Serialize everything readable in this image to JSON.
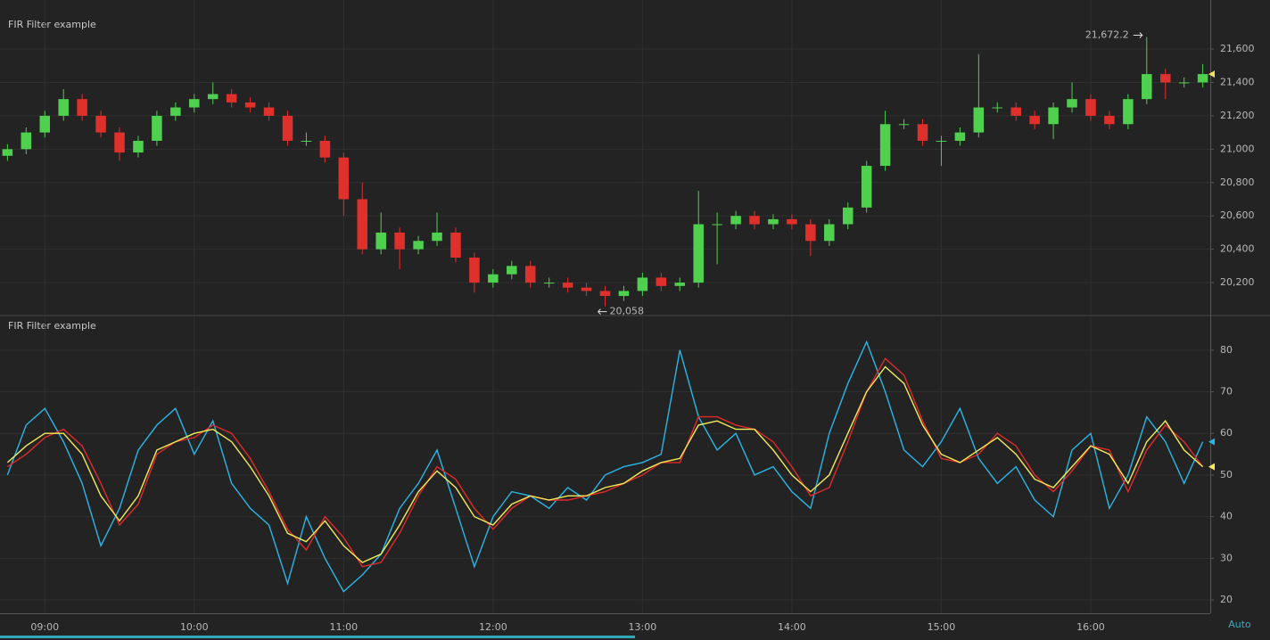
{
  "chart_data": [
    {
      "type": "candlestick",
      "title": "FIR Filter example",
      "x": [
        8.75,
        8.875,
        9,
        9.125,
        9.25,
        9.375,
        9.5,
        9.625,
        9.75,
        9.875,
        10,
        10.125,
        10.25,
        10.375,
        10.5,
        10.625,
        10.75,
        10.875,
        11,
        11.125,
        11.25,
        11.375,
        11.5,
        11.625,
        11.75,
        11.875,
        12,
        12.125,
        12.25,
        12.375,
        12.5,
        12.625,
        12.75,
        12.875,
        13,
        13.125,
        13.25,
        13.375,
        13.5,
        13.625,
        13.75,
        13.875,
        14,
        14.125,
        14.25,
        14.375,
        14.5,
        14.625,
        14.75,
        14.875,
        15,
        15.125,
        15.25,
        15.375,
        15.5,
        15.625,
        15.75,
        15.875,
        16,
        16.125,
        16.25,
        16.375,
        16.5,
        16.625,
        16.75
      ],
      "open": [
        20960,
        21000,
        21100,
        21200,
        21300,
        21200,
        21100,
        20980,
        21050,
        21200,
        21250,
        21300,
        21330,
        21280,
        21250,
        21200,
        21050,
        21050,
        20950,
        20700,
        20400,
        20500,
        20400,
        20450,
        20500,
        20350,
        20200,
        20250,
        20300,
        20200,
        20200,
        20170,
        20150,
        20120,
        20150,
        20230,
        20180,
        20200,
        20550,
        20550,
        20600,
        20550,
        20580,
        20550,
        20450,
        20550,
        20650,
        20900,
        21150,
        21150,
        21050,
        21050,
        21100,
        21250,
        21250,
        21200,
        21150,
        21250,
        21300,
        21200,
        21150,
        21300,
        21450,
        21400,
        21400
      ],
      "high": [
        21030,
        21130,
        21230,
        21360,
        21330,
        21230,
        21130,
        21080,
        21230,
        21280,
        21330,
        21400,
        21360,
        21310,
        21280,
        21230,
        21100,
        21080,
        20980,
        20800,
        20620,
        20530,
        20480,
        20620,
        20530,
        20380,
        20280,
        20330,
        20330,
        20230,
        20230,
        20200,
        20180,
        20180,
        20260,
        20260,
        20230,
        20750,
        20620,
        20630,
        20630,
        20610,
        20610,
        20580,
        20580,
        20680,
        20930,
        21230,
        21180,
        21180,
        21080,
        21130,
        21570,
        21280,
        21280,
        21230,
        21280,
        21400,
        21330,
        21230,
        21330,
        21672.2,
        21480,
        21430,
        21510
      ],
      "low": [
        20930,
        20970,
        21070,
        21170,
        21170,
        21070,
        20930,
        20950,
        21020,
        21170,
        21220,
        21270,
        21250,
        21220,
        21170,
        21020,
        21020,
        20920,
        20600,
        20370,
        20370,
        20280,
        20370,
        20420,
        20320,
        20140,
        20170,
        20220,
        20170,
        20170,
        20140,
        20120,
        20058,
        20090,
        20120,
        20150,
        20150,
        20170,
        20310,
        20520,
        20520,
        20520,
        20520,
        20360,
        20420,
        20520,
        20620,
        20870,
        21120,
        21020,
        20900,
        21020,
        21070,
        21220,
        21170,
        21120,
        21060,
        21220,
        21170,
        21120,
        21120,
        21270,
        21300,
        21370,
        21370
      ],
      "close": [
        21000,
        21100,
        21200,
        21300,
        21200,
        21100,
        20980,
        21050,
        21200,
        21250,
        21300,
        21330,
        21280,
        21250,
        21200,
        21050,
        21050,
        20950,
        20700,
        20400,
        20500,
        20400,
        20450,
        20500,
        20350,
        20200,
        20250,
        20300,
        20200,
        20200,
        20170,
        20150,
        20120,
        20150,
        20230,
        20180,
        20200,
        20550,
        20550,
        20600,
        20550,
        20580,
        20550,
        20450,
        20550,
        20650,
        20900,
        21150,
        21150,
        21050,
        21050,
        21100,
        21250,
        21250,
        21200,
        21150,
        21250,
        21300,
        21200,
        21150,
        21300,
        21450,
        21400,
        21400,
        21450
      ],
      "up_color": "#4fd04f",
      "down_color": "#e0302c",
      "last_color": "#f0e060",
      "ylim": [
        20008,
        21894
      ],
      "yticks": [
        {
          "value": 20200,
          "label": "20,200"
        },
        {
          "value": 20400,
          "label": "20,400"
        },
        {
          "value": 20600,
          "label": "20,600"
        },
        {
          "value": 20800,
          "label": "20,800"
        },
        {
          "value": 21000,
          "label": "21,000"
        },
        {
          "value": 21200,
          "label": "21,200"
        },
        {
          "value": 21400,
          "label": "21,400"
        },
        {
          "value": 21600,
          "label": "21,600"
        }
      ],
      "annotations": [
        {
          "text": "21,672.2",
          "x": 16.375,
          "y": 21672.2,
          "side": "left"
        },
        {
          "text": "20,058",
          "x": 12.75,
          "y": 20058,
          "side": "right"
        }
      ],
      "grid": true
    },
    {
      "type": "line",
      "title": "FIR Filter example",
      "x": [
        8.75,
        8.875,
        9,
        9.125,
        9.25,
        9.375,
        9.5,
        9.625,
        9.75,
        9.875,
        10,
        10.125,
        10.25,
        10.375,
        10.5,
        10.625,
        10.75,
        10.875,
        11,
        11.125,
        11.25,
        11.375,
        11.5,
        11.625,
        11.75,
        11.875,
        12,
        12.125,
        12.25,
        12.375,
        12.5,
        12.625,
        12.75,
        12.875,
        13,
        13.125,
        13.25,
        13.375,
        13.5,
        13.625,
        13.75,
        13.875,
        14,
        14.125,
        14.25,
        14.375,
        14.5,
        14.625,
        14.75,
        14.875,
        15,
        15.125,
        15.25,
        15.375,
        15.5,
        15.625,
        15.75,
        15.875,
        16,
        16.125,
        16.25,
        16.375,
        16.5,
        16.625,
        16.75
      ],
      "series": [
        {
          "color": "#29b6e6",
          "values": [
            50,
            62,
            66,
            58,
            48,
            33,
            42,
            56,
            62,
            66,
            55,
            63,
            48,
            42,
            38,
            24,
            40,
            30,
            22,
            26,
            31,
            42,
            48,
            56,
            42,
            28,
            40,
            46,
            45,
            42,
            47,
            44,
            50,
            52,
            53,
            55,
            80,
            64,
            56,
            60,
            50,
            52,
            46,
            42,
            60,
            72,
            82,
            70,
            56,
            52,
            58,
            66,
            54,
            48,
            52,
            44,
            40,
            56,
            60,
            42,
            50,
            64,
            58,
            48,
            58
          ]
        },
        {
          "color": "#e02a2a",
          "values": [
            52,
            55,
            59,
            61,
            57,
            48,
            38,
            43,
            55,
            58,
            59,
            62,
            60,
            54,
            46,
            37,
            32,
            40,
            35,
            28,
            29,
            36,
            45,
            52,
            49,
            42,
            37,
            42,
            45,
            44,
            44,
            45,
            46,
            48,
            50,
            53,
            53,
            64,
            64,
            62,
            61,
            58,
            52,
            45,
            47,
            58,
            70,
            78,
            74,
            63,
            54,
            53,
            55,
            60,
            57,
            50,
            46,
            51,
            57,
            56,
            46,
            56,
            62,
            58,
            52
          ]
        },
        {
          "color": "#f5ec5a",
          "values": [
            53,
            57,
            60,
            60,
            55,
            45,
            39,
            45,
            56,
            58,
            60,
            61,
            58,
            52,
            45,
            36,
            34,
            39,
            33,
            29,
            31,
            38,
            46,
            51,
            47,
            40,
            38,
            43,
            45,
            44,
            45,
            45,
            47,
            48,
            51,
            53,
            54,
            62,
            63,
            61,
            61,
            56,
            50,
            46,
            50,
            60,
            70,
            76,
            72,
            62,
            55,
            53,
            56,
            59,
            55,
            49,
            47,
            52,
            57,
            55,
            48,
            58,
            63,
            56,
            52
          ]
        }
      ],
      "ylim": [
        16.8,
        88.1
      ],
      "yticks": [
        20,
        30,
        40,
        50,
        60,
        70,
        80
      ],
      "xlim": [
        8.7,
        16.8
      ],
      "xticks": [
        {
          "value": 9,
          "label": "09:00"
        },
        {
          "value": 10,
          "label": "10:00"
        },
        {
          "value": 11,
          "label": "11:00"
        },
        {
          "value": 12,
          "label": "12:00"
        },
        {
          "value": 13,
          "label": "13:00"
        },
        {
          "value": 14,
          "label": "14:00"
        },
        {
          "value": 15,
          "label": "15:00"
        },
        {
          "value": 16,
          "label": "16:00"
        }
      ],
      "scale_mode": "Auto",
      "grid": true
    }
  ]
}
